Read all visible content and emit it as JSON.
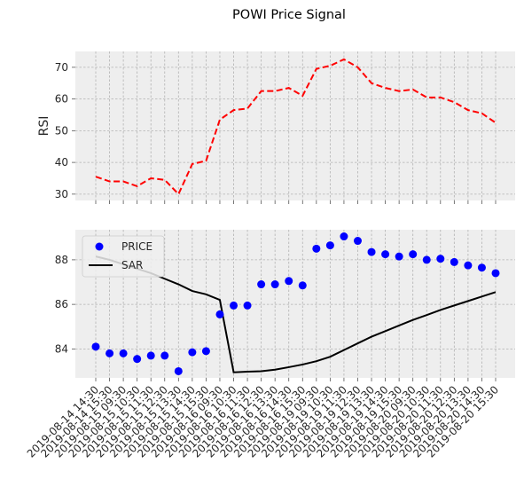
{
  "title": "POWI Price Signal",
  "colors": {
    "background": "#eeeeee",
    "grid": "#b2b2b2",
    "rsi_line": "#ff0000",
    "price_marker": "#0000ff",
    "sar_line": "#000000"
  },
  "chart_data": [
    {
      "type": "line",
      "ylabel": "RSI",
      "ylim": [
        28,
        75
      ],
      "yticks": [
        30,
        40,
        50,
        60,
        70
      ],
      "grid": true,
      "x": [
        "2019-08-14 14:30",
        "2019-08-14 15:30",
        "2019-08-15 09:30",
        "2019-08-15 10:30",
        "2019-08-15 11:30",
        "2019-08-15 12:30",
        "2019-08-15 13:30",
        "2019-08-15 14:30",
        "2019-08-15 15:30",
        "2019-08-16 09:30",
        "2019-08-16 10:30",
        "2019-08-16 11:30",
        "2019-08-16 12:30",
        "2019-08-16 13:30",
        "2019-08-16 14:30",
        "2019-08-16 15:30",
        "2019-08-19 09:30",
        "2019-08-19 10:30",
        "2019-08-19 11:30",
        "2019-08-19 12:30",
        "2019-08-19 13:30",
        "2019-08-19 14:30",
        "2019-08-19 15:30",
        "2019-08-20 09:30",
        "2019-08-20 10:30",
        "2019-08-20 11:30",
        "2019-08-20 12:30",
        "2019-08-20 13:30",
        "2019-08-20 14:30",
        "2019-08-20 15:30"
      ],
      "series": [
        {
          "style": "dashed",
          "color": "#ff0000",
          "values": [
            35.5,
            34.0,
            34.0,
            32.5,
            35.0,
            34.5,
            30.0,
            39.5,
            40.5,
            53.5,
            56.5,
            57.0,
            62.5,
            62.5,
            63.5,
            61.0,
            69.5,
            70.5,
            72.5,
            70.0,
            65.0,
            63.5,
            62.5,
            63.0,
            60.5,
            60.5,
            59.0,
            56.5,
            55.5,
            52.5
          ]
        }
      ]
    },
    {
      "type": "scatter+line",
      "ylim": [
        82.7,
        89.35
      ],
      "yticks": [
        84,
        86,
        88
      ],
      "grid": true,
      "legend": "top-left",
      "x_tick_labels": [
        "2019-08-14 14:30",
        "2019-08-14 15:30",
        "2019-08-15 09:30",
        "2019-08-15 10:30",
        "2019-08-15 11:30",
        "2019-08-15 12:30",
        "2019-08-15 13:30",
        "2019-08-15 14:30",
        "2019-08-15 15:30",
        "2019-08-16 09:30",
        "2019-08-16 10:30",
        "2019-08-16 11:30",
        "2019-08-16 12:30",
        "2019-08-16 13:30",
        "2019-08-16 14:30",
        "2019-08-16 15:30",
        "2019-08-19 09:30",
        "2019-08-19 10:30",
        "2019-08-19 11:30",
        "2019-08-19 12:30",
        "2019-08-19 13:30",
        "2019-08-19 14:30",
        "2019-08-19 15:30",
        "2019-08-20 09:30",
        "2019-08-20 10:30",
        "2019-08-20 11:30",
        "2019-08-20 12:30",
        "2019-08-20 13:30",
        "2019-08-20 14:30",
        "2019-08-20 15:30"
      ],
      "series": [
        {
          "name": "PRICE",
          "kind": "scatter",
          "color": "#0000ff",
          "values": [
            84.1,
            83.8,
            83.8,
            83.55,
            83.7,
            83.7,
            83.0,
            83.85,
            83.9,
            85.55,
            85.95,
            85.95,
            86.9,
            86.9,
            87.05,
            86.85,
            88.5,
            88.65,
            89.05,
            88.85,
            88.35,
            88.25,
            88.15,
            88.25,
            88.0,
            88.05,
            87.9,
            87.75,
            87.65,
            87.4
          ]
        },
        {
          "name": "SAR",
          "kind": "line",
          "color": "#000000",
          "values": [
            88.15,
            88.0,
            87.8,
            87.6,
            87.4,
            87.15,
            86.9,
            86.6,
            86.45,
            86.2,
            82.95,
            82.98,
            83.0,
            83.07,
            83.18,
            83.3,
            83.45,
            83.65,
            83.95,
            84.25,
            84.55,
            84.8,
            85.05,
            85.3,
            85.52,
            85.75,
            85.95,
            86.15,
            86.35,
            86.55
          ]
        }
      ]
    }
  ]
}
